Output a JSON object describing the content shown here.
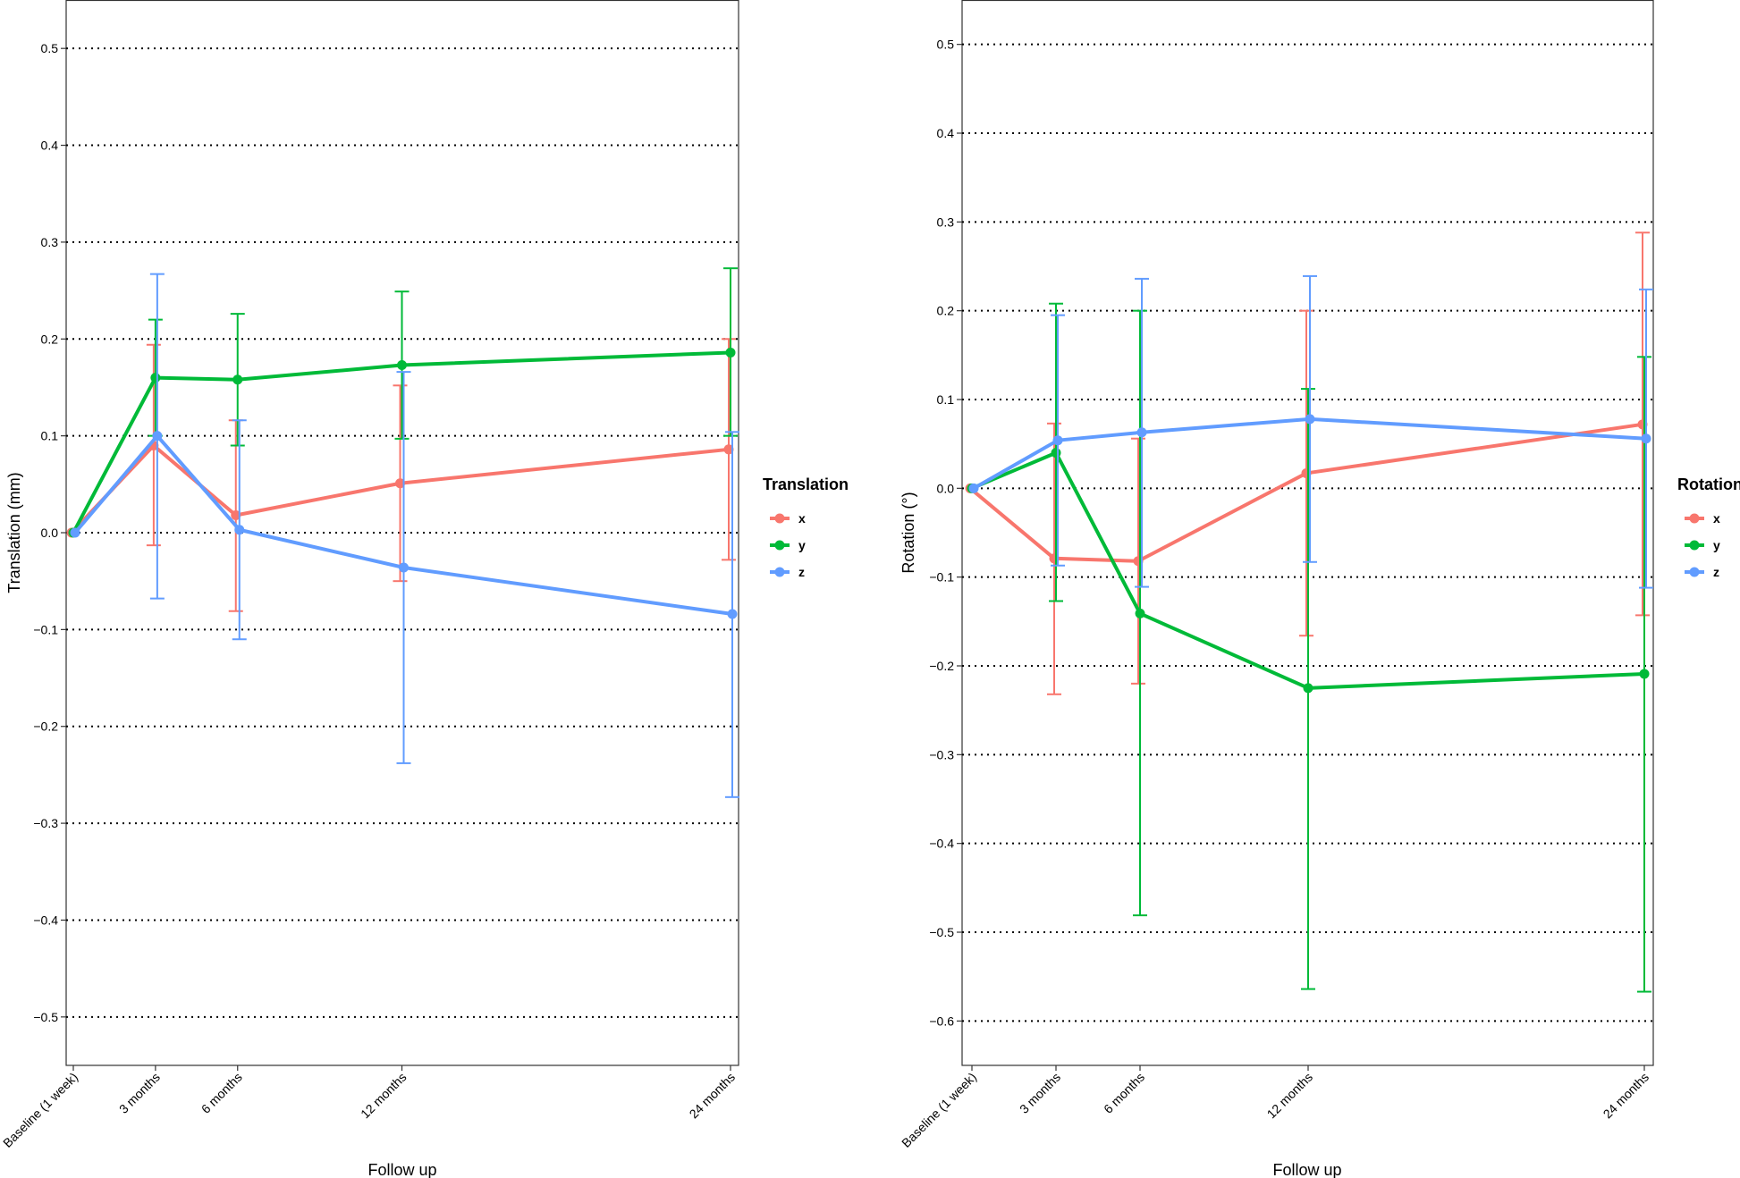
{
  "chart_data": [
    {
      "type": "line",
      "xlabel": "Follow up",
      "ylabel": "Translation (mm)",
      "x_categories": [
        "Baseline (1 week)",
        "3 months",
        "6 months",
        "12 months",
        "24 months"
      ],
      "x_months": [
        0,
        3,
        6,
        12,
        24
      ],
      "ylim": [
        -0.55,
        0.55
      ],
      "yticks": [
        -0.5,
        -0.4,
        -0.3,
        -0.2,
        -0.1,
        0.0,
        0.1,
        0.2,
        0.3,
        0.4,
        0.5
      ],
      "ytick_labels": [
        "−0.5",
        "−0.4",
        "−0.3",
        "−0.2",
        "−0.1",
        "0.0",
        "0.1",
        "0.2",
        "0.3",
        "0.4",
        "0.5"
      ],
      "grid": "horizontal dotted",
      "legend": {
        "title": "Translation",
        "position": "right"
      },
      "series": [
        {
          "name": "x",
          "color": "#F8766D",
          "values": [
            0.0,
            0.09,
            0.018,
            0.051,
            0.086
          ],
          "lower": [
            null,
            -0.013,
            -0.081,
            -0.05,
            -0.028
          ],
          "upper": [
            null,
            0.194,
            0.116,
            0.152,
            0.2
          ]
        },
        {
          "name": "y",
          "color": "#00BA38",
          "values": [
            0.0,
            0.16,
            0.158,
            0.173,
            0.186
          ],
          "lower": [
            null,
            0.1,
            0.09,
            0.097,
            0.1
          ],
          "upper": [
            null,
            0.22,
            0.226,
            0.249,
            0.273
          ]
        },
        {
          "name": "z",
          "color": "#619CFF",
          "values": [
            0.0,
            0.1,
            0.003,
            -0.036,
            -0.084
          ],
          "lower": [
            null,
            -0.068,
            -0.11,
            -0.238,
            -0.273
          ],
          "upper": [
            null,
            0.267,
            0.116,
            0.166,
            0.104
          ]
        }
      ]
    },
    {
      "type": "line",
      "xlabel": "Follow up",
      "ylabel": "Rotation (°)",
      "x_categories": [
        "Baseline (1 week)",
        "3 months",
        "6 months",
        "12 months",
        "24 months"
      ],
      "x_months": [
        0,
        3,
        6,
        12,
        24
      ],
      "ylim": [
        -0.65,
        0.55
      ],
      "yticks": [
        -0.6,
        -0.5,
        -0.4,
        -0.3,
        -0.2,
        -0.1,
        0.0,
        0.1,
        0.2,
        0.3,
        0.4,
        0.5
      ],
      "ytick_labels": [
        "−0.6",
        "−0.5",
        "−0.4",
        "−0.3",
        "−0.2",
        "−0.1",
        "0.0",
        "0.1",
        "0.2",
        "0.3",
        "0.4",
        "0.5"
      ],
      "grid": "horizontal dotted",
      "legend": {
        "title": "Rotation",
        "position": "right"
      },
      "series": [
        {
          "name": "x",
          "color": "#F8766D",
          "values": [
            0.0,
            -0.079,
            -0.082,
            0.017,
            0.072
          ],
          "lower": [
            null,
            -0.232,
            -0.22,
            -0.166,
            -0.143
          ],
          "upper": [
            null,
            0.073,
            0.056,
            0.2,
            0.288
          ]
        },
        {
          "name": "y",
          "color": "#00BA38",
          "values": [
            0.0,
            0.04,
            -0.141,
            -0.225,
            -0.209
          ],
          "lower": [
            null,
            -0.127,
            -0.481,
            -0.564,
            -0.567
          ],
          "upper": [
            null,
            0.208,
            0.2,
            0.112,
            0.148
          ]
        },
        {
          "name": "z",
          "color": "#619CFF",
          "values": [
            0.0,
            0.054,
            0.063,
            0.078,
            0.056
          ],
          "lower": [
            null,
            -0.087,
            -0.111,
            -0.083,
            -0.112
          ],
          "upper": [
            null,
            0.195,
            0.236,
            0.239,
            0.224
          ]
        }
      ]
    }
  ]
}
